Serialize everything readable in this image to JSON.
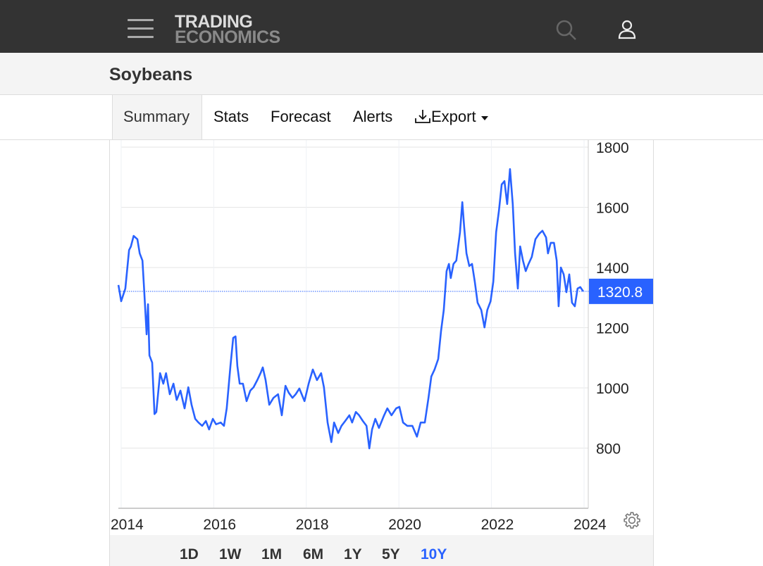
{
  "header": {
    "logo_line1": "TRADING",
    "logo_line2": "ECONOMICS",
    "icons": [
      "menu-icon",
      "search-icon",
      "user-icon"
    ]
  },
  "page": {
    "title": "Soybeans"
  },
  "tabs": [
    {
      "label": "Summary",
      "active": true
    },
    {
      "label": "Stats"
    },
    {
      "label": "Forecast"
    },
    {
      "label": "Alerts"
    },
    {
      "label": "Export",
      "icon": "download-icon",
      "dropdown": true
    }
  ],
  "ranges": [
    {
      "label": "1D"
    },
    {
      "label": "1W"
    },
    {
      "label": "1M"
    },
    {
      "label": "6M"
    },
    {
      "label": "1Y"
    },
    {
      "label": "5Y"
    },
    {
      "label": "10Y",
      "selected": true
    }
  ],
  "colors": {
    "line": "#2962ff",
    "header": "#333333",
    "selected": "#2962ff"
  },
  "chart_data": {
    "type": "line",
    "title": "Soybeans",
    "xlim": [
      2014,
      2024
    ],
    "ylim": [
      600,
      1820
    ],
    "x_ticks": [
      "2014",
      "2016",
      "2018",
      "2020",
      "2022",
      "2024"
    ],
    "y_ticks": [
      "800",
      "1000",
      "1200",
      "1400",
      "1600",
      "1800"
    ],
    "last_value": "1320.8",
    "grid": true,
    "series": [
      {
        "name": "Soybeans",
        "points": [
          [
            2013.94,
            1342
          ],
          [
            2014.0,
            1288
          ],
          [
            2014.09,
            1330
          ],
          [
            2014.17,
            1458
          ],
          [
            2014.21,
            1470
          ],
          [
            2014.27,
            1505
          ],
          [
            2014.35,
            1494
          ],
          [
            2014.4,
            1447
          ],
          [
            2014.46,
            1423
          ],
          [
            2014.5,
            1318
          ],
          [
            2014.55,
            1178
          ],
          [
            2014.58,
            1278
          ],
          [
            2014.61,
            1108
          ],
          [
            2014.67,
            1084
          ],
          [
            2014.72,
            913
          ],
          [
            2014.76,
            920
          ],
          [
            2014.84,
            1049
          ],
          [
            2014.91,
            1014
          ],
          [
            2014.97,
            1049
          ],
          [
            2015.05,
            979
          ],
          [
            2015.13,
            1014
          ],
          [
            2015.2,
            960
          ],
          [
            2015.28,
            991
          ],
          [
            2015.37,
            932
          ],
          [
            2015.45,
            1002
          ],
          [
            2015.52,
            944
          ],
          [
            2015.6,
            897
          ],
          [
            2015.67,
            885
          ],
          [
            2015.75,
            874
          ],
          [
            2015.83,
            890
          ],
          [
            2015.9,
            862
          ],
          [
            2015.98,
            897
          ],
          [
            2016.05,
            879
          ],
          [
            2016.15,
            885
          ],
          [
            2016.22,
            874
          ],
          [
            2016.28,
            932
          ],
          [
            2016.36,
            1073
          ],
          [
            2016.42,
            1166
          ],
          [
            2016.47,
            1171
          ],
          [
            2016.51,
            1073
          ],
          [
            2016.56,
            1014
          ],
          [
            2016.63,
            1014
          ],
          [
            2016.71,
            956
          ],
          [
            2016.79,
            991
          ],
          [
            2016.86,
            1002
          ],
          [
            2016.94,
            1026
          ],
          [
            2017.01,
            1049
          ],
          [
            2017.06,
            1068
          ],
          [
            2017.12,
            1026
          ],
          [
            2017.2,
            944
          ],
          [
            2017.29,
            967
          ],
          [
            2017.39,
            979
          ],
          [
            2017.47,
            909
          ],
          [
            2017.55,
            1007
          ],
          [
            2017.62,
            984
          ],
          [
            2017.7,
            967
          ],
          [
            2017.77,
            979
          ],
          [
            2017.85,
            998
          ],
          [
            2017.96,
            956
          ],
          [
            2018.05,
            1014
          ],
          [
            2018.14,
            1061
          ],
          [
            2018.23,
            1026
          ],
          [
            2018.32,
            1049
          ],
          [
            2018.38,
            1002
          ],
          [
            2018.46,
            885
          ],
          [
            2018.54,
            820
          ],
          [
            2018.6,
            885
          ],
          [
            2018.69,
            850
          ],
          [
            2018.76,
            874
          ],
          [
            2018.84,
            890
          ],
          [
            2018.93,
            909
          ],
          [
            2018.99,
            885
          ],
          [
            2019.07,
            920
          ],
          [
            2019.14,
            909
          ],
          [
            2019.22,
            890
          ],
          [
            2019.3,
            874
          ],
          [
            2019.36,
            799
          ],
          [
            2019.42,
            862
          ],
          [
            2019.49,
            897
          ],
          [
            2019.57,
            867
          ],
          [
            2019.68,
            909
          ],
          [
            2019.75,
            932
          ],
          [
            2019.84,
            909
          ],
          [
            2019.94,
            932
          ],
          [
            2020.01,
            937
          ],
          [
            2020.09,
            885
          ],
          [
            2020.18,
            874
          ],
          [
            2020.29,
            874
          ],
          [
            2020.39,
            838
          ],
          [
            2020.47,
            885
          ],
          [
            2020.56,
            885
          ],
          [
            2020.64,
            967
          ],
          [
            2020.7,
            1038
          ],
          [
            2020.77,
            1061
          ],
          [
            2020.85,
            1096
          ],
          [
            2020.91,
            1189
          ],
          [
            2020.97,
            1259
          ],
          [
            2021.03,
            1388
          ],
          [
            2021.08,
            1412
          ],
          [
            2021.12,
            1365
          ],
          [
            2021.18,
            1412
          ],
          [
            2021.24,
            1423
          ],
          [
            2021.32,
            1517
          ],
          [
            2021.37,
            1617
          ],
          [
            2021.41,
            1536
          ],
          [
            2021.46,
            1447
          ],
          [
            2021.52,
            1405
          ],
          [
            2021.58,
            1412
          ],
          [
            2021.64,
            1353
          ],
          [
            2021.7,
            1283
          ],
          [
            2021.78,
            1259
          ],
          [
            2021.85,
            1201
          ],
          [
            2021.91,
            1259
          ],
          [
            2021.98,
            1288
          ],
          [
            2022.04,
            1353
          ],
          [
            2022.1,
            1517
          ],
          [
            2022.16,
            1587
          ],
          [
            2022.22,
            1676
          ],
          [
            2022.28,
            1687
          ],
          [
            2022.34,
            1611
          ],
          [
            2022.4,
            1727
          ],
          [
            2022.46,
            1611
          ],
          [
            2022.51,
            1447
          ],
          [
            2022.57,
            1330
          ],
          [
            2022.62,
            1470
          ],
          [
            2022.68,
            1423
          ],
          [
            2022.74,
            1388
          ],
          [
            2022.8,
            1412
          ],
          [
            2022.87,
            1435
          ],
          [
            2022.95,
            1494
          ],
          [
            2023.03,
            1512
          ],
          [
            2023.1,
            1522
          ],
          [
            2023.18,
            1500
          ],
          [
            2023.22,
            1447
          ],
          [
            2023.28,
            1482
          ],
          [
            2023.35,
            1482
          ],
          [
            2023.41,
            1423
          ],
          [
            2023.45,
            1271
          ],
          [
            2023.5,
            1400
          ],
          [
            2023.56,
            1377
          ],
          [
            2023.62,
            1318
          ],
          [
            2023.68,
            1377
          ],
          [
            2023.74,
            1283
          ],
          [
            2023.8,
            1271
          ],
          [
            2023.86,
            1330
          ],
          [
            2023.92,
            1335
          ],
          [
            2023.98,
            1321
          ]
        ]
      }
    ]
  }
}
